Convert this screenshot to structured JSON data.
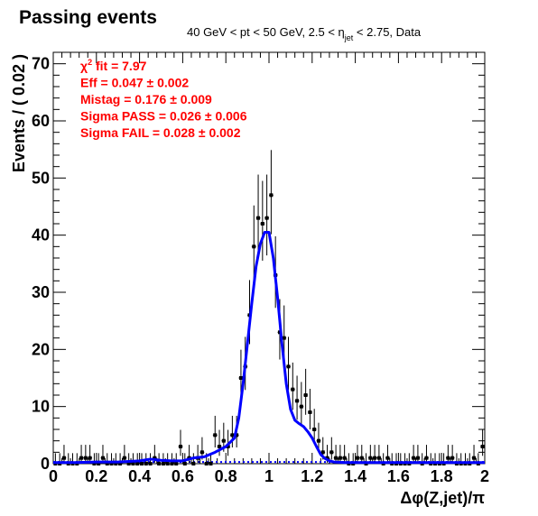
{
  "chart_data": {
    "type": "scatter",
    "title": "Passing events",
    "subtitle": "40 GeV < pt < 50 GeV, 2.5 < η_jet < 2.75, Data",
    "subtitle_parts": {
      "pre": "40 GeV < pt < 50 GeV, 2.5 < η",
      "sub": "jet",
      "post": " < 2.75, Data"
    },
    "xlabel": "Δφ(Z,jet)/π",
    "ylabel": "Events / ( 0.02 )",
    "xlim": [
      0,
      2
    ],
    "ylim": [
      0,
      72
    ],
    "x_ticks": [
      "0",
      "0.2",
      "0.4",
      "0.6",
      "0.8",
      "1",
      "1.2",
      "1.4",
      "1.6",
      "1.8",
      "2"
    ],
    "y_ticks": [
      "0",
      "10",
      "20",
      "30",
      "40",
      "50",
      "60",
      "70"
    ],
    "annotations": [
      {
        "label": "χ",
        "sup": "2",
        "rest": " fit = 7.97"
      },
      {
        "label": "Eff = 0.047 ",
        "sup": "",
        "rest": "± 0.002"
      },
      {
        "label": "Mistag = 0.176 ",
        "sup": "",
        "rest": "± 0.009"
      },
      {
        "label": "Sigma PASS = 0.026 ",
        "sup": "",
        "rest": "± 0.006"
      },
      {
        "label": "Sigma FAIL = 0.028 ",
        "sup": "",
        "rest": "± 0.002"
      }
    ],
    "colors": {
      "data": "#000000",
      "fit": "#0000ff",
      "annotation": "#ff0000"
    },
    "series": [
      {
        "style": "points with error bars",
        "x": [
          0.01,
          0.03,
          0.05,
          0.07,
          0.09,
          0.11,
          0.13,
          0.15,
          0.17,
          0.19,
          0.21,
          0.23,
          0.25,
          0.27,
          0.29,
          0.31,
          0.33,
          0.35,
          0.37,
          0.39,
          0.41,
          0.43,
          0.45,
          0.47,
          0.49,
          0.51,
          0.53,
          0.55,
          0.57,
          0.59,
          0.61,
          0.63,
          0.65,
          0.67,
          0.69,
          0.71,
          0.73,
          0.75,
          0.77,
          0.79,
          0.81,
          0.83,
          0.85,
          0.87,
          0.89,
          0.91,
          0.93,
          0.95,
          0.97,
          0.99,
          1.01,
          1.03,
          1.05,
          1.07,
          1.09,
          1.11,
          1.13,
          1.15,
          1.17,
          1.19,
          1.21,
          1.23,
          1.25,
          1.27,
          1.29,
          1.31,
          1.33,
          1.35,
          1.37,
          1.39,
          1.41,
          1.43,
          1.45,
          1.47,
          1.49,
          1.51,
          1.53,
          1.55,
          1.57,
          1.59,
          1.61,
          1.63,
          1.65,
          1.67,
          1.69,
          1.71,
          1.73,
          1.75,
          1.77,
          1.79,
          1.81,
          1.83,
          1.85,
          1.87,
          1.89,
          1.91,
          1.93,
          1.95,
          1.97,
          1.99
        ],
        "y": [
          0,
          0,
          1,
          0,
          0,
          0,
          1,
          1,
          1,
          0,
          0,
          1,
          0,
          0,
          0,
          0,
          1,
          0,
          0,
          0,
          0,
          0,
          0,
          1,
          0,
          0,
          0,
          0,
          0,
          3,
          0,
          1,
          0,
          1,
          2,
          0,
          0,
          5,
          3,
          4,
          3,
          5,
          5,
          15,
          17,
          26,
          38,
          43,
          42,
          43,
          47,
          33,
          23,
          22,
          17,
          13,
          11,
          10,
          12,
          9,
          6,
          4,
          2,
          1,
          2,
          1,
          1,
          1,
          0,
          0,
          1,
          1,
          0,
          1,
          1,
          1,
          0,
          1,
          0,
          0,
          0,
          0,
          0,
          1,
          1,
          0,
          1,
          0,
          0,
          0,
          0,
          1,
          1,
          0,
          0,
          0,
          0,
          1,
          0,
          3
        ],
        "yerr_low": [
          0,
          0,
          0.83,
          0,
          0,
          0,
          0.83,
          0.83,
          0.83,
          0,
          0,
          0.83,
          0,
          0,
          0,
          0,
          0.83,
          0,
          0,
          0,
          0,
          0,
          0,
          0.83,
          0,
          0,
          0,
          0,
          0,
          1.63,
          0,
          0.83,
          0,
          0.83,
          1.29,
          0,
          0,
          2.16,
          1.63,
          1.91,
          1.63,
          2.16,
          2.16,
          3.83,
          4.1,
          5.08,
          6.16,
          6.55,
          6.47,
          6.55,
          6.84,
          5.73,
          4.77,
          4.66,
          4.1,
          3.58,
          3.3,
          3.16,
          3.44,
          2.99,
          2.38,
          1.91,
          1.29,
          0.83,
          1.29,
          0.83,
          0.83,
          0.83,
          0,
          0,
          0.83,
          0.83,
          0,
          0.83,
          0.83,
          0.83,
          0,
          0.83,
          0,
          0,
          0,
          0,
          0,
          0.83,
          0.83,
          0,
          0.83,
          0,
          0,
          0,
          0,
          0.83,
          0.83,
          0,
          0,
          0,
          0,
          0.83,
          0,
          1.63
        ],
        "yerr_high": [
          1.84,
          1.84,
          2.3,
          1.84,
          1.84,
          1.84,
          2.3,
          2.3,
          2.3,
          1.84,
          1.84,
          2.3,
          1.84,
          1.84,
          1.84,
          1.84,
          2.3,
          1.84,
          1.84,
          1.84,
          1.84,
          1.84,
          1.84,
          2.3,
          1.84,
          1.84,
          1.84,
          1.84,
          1.84,
          2.92,
          1.84,
          2.3,
          1.84,
          2.3,
          2.64,
          1.84,
          1.84,
          3.38,
          2.92,
          3.16,
          2.92,
          3.38,
          3.38,
          4.95,
          5.2,
          6.14,
          7.2,
          7.6,
          7.5,
          7.6,
          7.9,
          6.8,
          5.8,
          5.7,
          5.2,
          4.7,
          4.4,
          4.3,
          4.6,
          4.1,
          3.6,
          3.16,
          2.64,
          2.3,
          2.64,
          2.3,
          2.3,
          2.3,
          1.84,
          1.84,
          2.3,
          2.3,
          1.84,
          2.3,
          2.3,
          2.3,
          1.84,
          2.3,
          1.84,
          1.84,
          1.84,
          1.84,
          1.84,
          2.3,
          2.3,
          1.84,
          2.3,
          1.84,
          1.84,
          1.84,
          1.84,
          2.3,
          2.3,
          1.84,
          1.84,
          1.84,
          1.84,
          2.3,
          1.84,
          2.92
        ]
      },
      {
        "style": "fit curve (solid blue)",
        "x": [
          0,
          0.1,
          0.2,
          0.3,
          0.4,
          0.45,
          0.5,
          0.55,
          0.6,
          0.65,
          0.7,
          0.75,
          0.8,
          0.84,
          0.86,
          0.88,
          0.9,
          0.92,
          0.94,
          0.96,
          0.98,
          1.0,
          1.02,
          1.04,
          1.06,
          1.08,
          1.1,
          1.12,
          1.14,
          1.16,
          1.18,
          1.2,
          1.22,
          1.24,
          1.26,
          1.28,
          1.3,
          1.35,
          1.4,
          1.5,
          1.6,
          1.7,
          1.8,
          1.9,
          2.0
        ],
        "y": [
          0.2,
          0.2,
          0.3,
          0.3,
          0.5,
          0.8,
          0.6,
          0.5,
          0.5,
          1.0,
          1.2,
          2.0,
          3.0,
          4.5,
          8,
          14,
          21,
          28,
          34.5,
          38.5,
          40.5,
          40.5,
          36,
          29,
          21,
          14,
          9.5,
          7.6,
          7.0,
          6.5,
          5.6,
          4.5,
          3.0,
          1.6,
          0.9,
          0.5,
          0.3,
          0.2,
          0.2,
          0.2,
          0.2,
          0.2,
          0.2,
          0.2,
          0.2
        ]
      },
      {
        "style": "background (dotted blue)",
        "x": [
          0,
          2
        ],
        "y": [
          0.3,
          0.3
        ]
      }
    ]
  }
}
